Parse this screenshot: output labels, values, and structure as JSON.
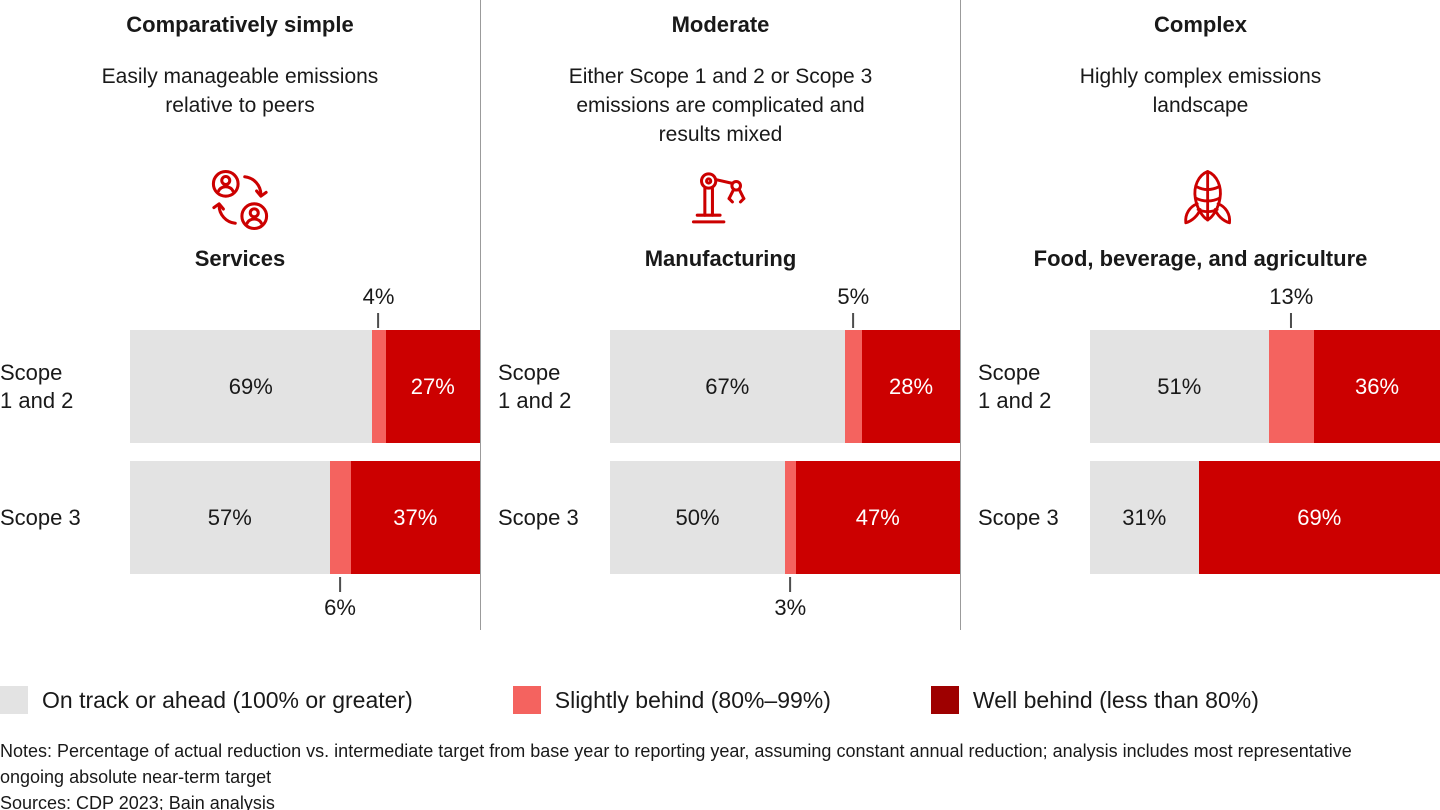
{
  "colors": {
    "on_track": "#e3e3e3",
    "slightly_behind": "#f4635f",
    "well_behind_bar": "#cc0000",
    "well_behind_legend": "#9e0000",
    "icon_red": "#cc0000",
    "divider": "#9b9b9b",
    "text": "#191919"
  },
  "chart_data": {
    "type": "bar",
    "orientation": "horizontal-stacked",
    "unit": "%",
    "xlim": [
      0,
      100
    ],
    "grid": false,
    "legend_position": "bottom",
    "series_names": [
      "On track or ahead (100% or greater)",
      "Slightly behind (80%–99%)",
      "Well behind (less than 80%)"
    ],
    "groups": [
      {
        "complexity": "Comparatively simple",
        "description": "Easily manageable emissions relative to peers",
        "icon": "people-cycle-icon",
        "sector": "Services",
        "rows": [
          {
            "label": "Scope\n1 and 2",
            "label_plain": "Scope 1 and 2",
            "values": [
              69,
              4,
              27
            ],
            "callout": {
              "text": "4%",
              "position": "above"
            }
          },
          {
            "label": "Scope 3",
            "label_plain": "Scope 3",
            "values": [
              57,
              6,
              37
            ],
            "callout": {
              "text": "6%",
              "position": "below"
            }
          }
        ]
      },
      {
        "complexity": "Moderate",
        "description": "Either Scope 1 and 2 or Scope 3 emissions are complicated and results mixed",
        "icon": "robot-arm-icon",
        "sector": "Manufacturing",
        "rows": [
          {
            "label": "Scope\n1 and 2",
            "label_plain": "Scope 1 and 2",
            "values": [
              67,
              5,
              28
            ],
            "callout": {
              "text": "5%",
              "position": "above"
            }
          },
          {
            "label": "Scope 3",
            "label_plain": "Scope 3",
            "values": [
              50,
              3,
              47
            ],
            "callout": {
              "text": "3%",
              "position": "below"
            }
          }
        ]
      },
      {
        "complexity": "Complex",
        "description": "Highly complex emissions landscape",
        "icon": "corn-icon",
        "sector": "Food, beverage, and agriculture",
        "rows": [
          {
            "label": "Scope\n1 and 2",
            "label_plain": "Scope 1 and 2",
            "values": [
              51,
              13,
              36
            ],
            "callout": {
              "text": "13%",
              "position": "above"
            }
          },
          {
            "label": "Scope 3",
            "label_plain": "Scope 3",
            "values": [
              31,
              0,
              69
            ],
            "callout": null
          }
        ]
      }
    ]
  },
  "legend": {
    "items": [
      {
        "label": "On track or ahead (100% or greater)",
        "swatch": "on_track"
      },
      {
        "label": "Slightly behind (80%–99%)",
        "swatch": "slightly_behind"
      },
      {
        "label": "Well behind (less than 80%)",
        "swatch": "well_behind_legend"
      }
    ]
  },
  "notes": "Notes: Percentage of actual reduction vs. intermediate target from base year to reporting year, assuming constant annual reduction; analysis includes most representative ongoing absolute near-term target",
  "sources": "Sources: CDP 2023; Bain analysis"
}
